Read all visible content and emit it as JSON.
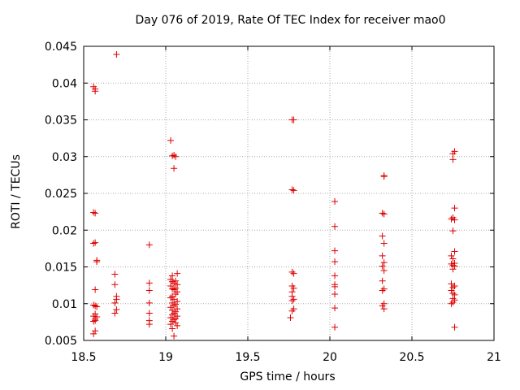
{
  "chart_data": {
    "type": "scatter",
    "title": "Day 076 of 2019, Rate Of TEC Index for receiver mao0",
    "xlabel": "GPS time / hours",
    "ylabel": "ROTI / TECUs",
    "xlim": [
      18.5,
      21
    ],
    "ylim": [
      0.005,
      0.045
    ],
    "xticks": [
      "18.5",
      "19",
      "19.5",
      "20",
      "20.5",
      "21"
    ],
    "yticks": [
      "0.005",
      "0.01",
      "0.015",
      "0.02",
      "0.025",
      "0.03",
      "0.035",
      "0.04",
      "0.045"
    ],
    "grid": true,
    "marker": "+",
    "series": [
      {
        "name": "ROTI",
        "color": "#dd0000",
        "x": [
          18.56,
          18.57,
          18.57,
          18.56,
          18.57,
          18.57,
          18.56,
          18.58,
          18.58,
          18.57,
          18.56,
          18.57,
          18.58,
          18.57,
          18.56,
          18.58,
          18.57,
          18.57,
          18.56,
          18.57,
          18.56,
          18.7,
          18.69,
          18.69,
          18.7,
          18.7,
          18.69,
          18.7,
          18.69,
          18.9,
          18.9,
          18.9,
          18.9,
          18.9,
          18.9,
          18.9,
          19.03,
          19.05,
          19.04,
          19.06,
          19.05,
          19.07,
          19.04,
          19.03,
          19.06,
          19.04,
          19.05,
          19.07,
          19.03,
          19.06,
          19.04,
          19.05,
          19.07,
          19.06,
          19.04,
          19.03,
          19.05,
          19.07,
          19.04,
          19.06,
          19.05,
          19.03,
          19.07,
          19.04,
          19.06,
          19.05,
          19.04,
          19.07,
          19.03,
          19.06,
          19.05,
          19.04,
          19.06,
          19.03,
          19.07,
          19.04,
          19.05,
          19.78,
          19.77,
          19.77,
          19.78,
          19.77,
          19.78,
          19.77,
          19.78,
          19.77,
          19.77,
          19.78,
          19.77,
          19.78,
          19.77,
          19.76,
          20.03,
          20.03,
          20.03,
          20.03,
          20.03,
          20.03,
          20.03,
          20.03,
          20.03,
          20.03,
          20.33,
          20.33,
          20.32,
          20.33,
          20.32,
          20.33,
          20.32,
          20.33,
          20.32,
          20.33,
          20.32,
          20.33,
          20.32,
          20.33,
          20.32,
          20.33,
          20.76,
          20.75,
          20.75,
          20.76,
          20.75,
          20.74,
          20.76,
          20.75,
          20.76,
          20.74,
          20.75,
          20.76,
          20.74,
          20.75,
          20.76,
          20.75,
          20.74,
          20.76,
          20.75,
          20.74,
          20.75,
          20.76,
          20.75,
          20.76,
          20.75,
          20.74,
          20.76
        ],
        "y": [
          0.0395,
          0.0392,
          0.0389,
          0.0224,
          0.0223,
          0.0183,
          0.0182,
          0.0159,
          0.0157,
          0.0119,
          0.0098,
          0.0097,
          0.0096,
          0.0086,
          0.0083,
          0.0082,
          0.0079,
          0.0077,
          0.0076,
          0.0063,
          0.0059,
          0.0439,
          0.014,
          0.0126,
          0.011,
          0.0106,
          0.0101,
          0.0092,
          0.0087,
          0.018,
          0.0128,
          0.0118,
          0.0101,
          0.0087,
          0.0077,
          0.0072,
          0.0322,
          0.0302,
          0.0301,
          0.03,
          0.0284,
          0.0141,
          0.0138,
          0.0133,
          0.0131,
          0.013,
          0.0128,
          0.0126,
          0.0124,
          0.0121,
          0.012,
          0.0119,
          0.0116,
          0.0113,
          0.011,
          0.0108,
          0.0106,
          0.0103,
          0.0101,
          0.0099,
          0.0097,
          0.0095,
          0.0093,
          0.0091,
          0.0089,
          0.0087,
          0.0085,
          0.0083,
          0.0081,
          0.008,
          0.0078,
          0.0076,
          0.0074,
          0.0072,
          0.007,
          0.0066,
          0.0056,
          0.035,
          0.035,
          0.0255,
          0.0254,
          0.0143,
          0.0141,
          0.0124,
          0.0121,
          0.0116,
          0.011,
          0.0106,
          0.0104,
          0.0093,
          0.009,
          0.0081,
          0.0239,
          0.0205,
          0.0172,
          0.0157,
          0.0138,
          0.0126,
          0.0123,
          0.0113,
          0.0094,
          0.0068,
          0.0274,
          0.0273,
          0.0223,
          0.0222,
          0.0192,
          0.0182,
          0.0165,
          0.0156,
          0.0151,
          0.0145,
          0.0131,
          0.012,
          0.0118,
          0.01,
          0.0097,
          0.0093,
          0.0307,
          0.0304,
          0.0296,
          0.023,
          0.0217,
          0.0215,
          0.0214,
          0.0199,
          0.0171,
          0.0165,
          0.0161,
          0.0155,
          0.0154,
          0.0152,
          0.0151,
          0.0147,
          0.0127,
          0.0124,
          0.0122,
          0.0118,
          0.0114,
          0.0112,
          0.0107,
          0.0105,
          0.0102,
          0.01,
          0.0068
        ]
      }
    ]
  }
}
